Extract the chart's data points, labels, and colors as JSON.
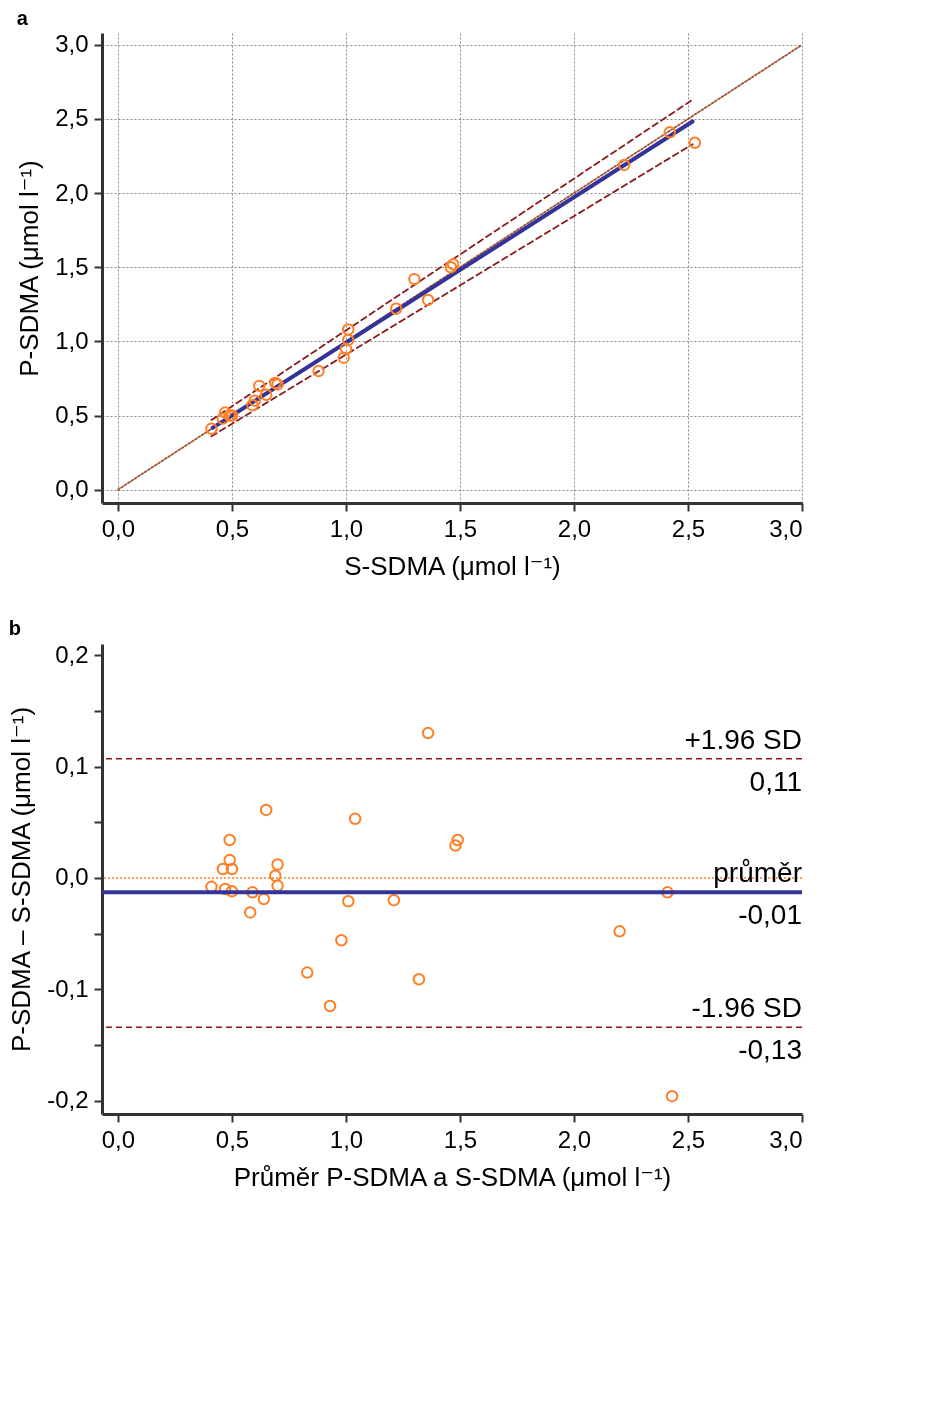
{
  "chart_data": [
    {
      "type": "scatter",
      "title": "a",
      "xlabel": "S-SDMA (μmol l⁻¹)",
      "ylabel": "P-SDMA (μmol l⁻¹)",
      "grid": true,
      "xlim": [
        -0.07,
        3.0
      ],
      "ylim": [
        -0.09,
        3.08
      ],
      "xticks": [
        {
          "value": 0,
          "label": "0,0"
        },
        {
          "value": 0.5,
          "label": "0,5"
        },
        {
          "value": 1,
          "label": "1,0"
        },
        {
          "value": 1.5,
          "label": "1,5"
        },
        {
          "value": 2,
          "label": "2,0"
        },
        {
          "value": 2.5,
          "label": "2,5"
        },
        {
          "value": 3,
          "label": "3,0"
        }
      ],
      "yticks": [
        {
          "value": 0,
          "label": "0,0"
        },
        {
          "value": 0.5,
          "label": "0,5"
        },
        {
          "value": 1,
          "label": "1,0"
        },
        {
          "value": 1.5,
          "label": "1,5"
        },
        {
          "value": 2,
          "label": "2,0"
        },
        {
          "value": 2.5,
          "label": "2,5"
        },
        {
          "value": 3,
          "label": "3,0"
        }
      ],
      "series": [
        {
          "type": "line",
          "line_style": "dotted",
          "color": "#a0522d",
          "x": [
            0,
            3
          ],
          "values": [
            0,
            3
          ]
        },
        {
          "type": "line",
          "line_style": "dashed",
          "color": "#8b1a1a",
          "x": [
            0.41,
            2.52
          ],
          "values": [
            0.47,
            2.63
          ]
        },
        {
          "type": "line",
          "line_style": "dashed",
          "color": "#8b1a1a",
          "x": [
            0.41,
            2.52
          ],
          "values": [
            0.36,
            2.33
          ]
        },
        {
          "type": "line",
          "line_style": "solid",
          "color": "#333399",
          "x": [
            0.415,
            2.52
          ],
          "values": [
            0.417,
            2.483
          ]
        },
        {
          "marker": "circle",
          "color": "#ff7f27",
          "x": [
            0.41,
            0.47,
            0.46,
            0.49,
            0.5,
            0.59,
            0.6,
            0.62,
            0.65,
            0.69,
            0.7,
            0.88,
            0.99,
            1.0,
            1.01,
            1.01,
            1.22,
            1.3,
            1.36,
            1.46,
            1.47,
            2.22,
            2.42,
            2.53
          ],
          "values": [
            0.41,
            0.52,
            0.48,
            0.5,
            0.5,
            0.57,
            0.6,
            0.7,
            0.64,
            0.72,
            0.71,
            0.8,
            0.89,
            0.95,
            1.01,
            1.08,
            1.22,
            1.42,
            1.28,
            1.5,
            1.52,
            2.19,
            2.41,
            2.34
          ]
        }
      ]
    },
    {
      "type": "scatter",
      "title": "b",
      "xlabel": "Průměr P-SDMA a S-SDMA (μmol l⁻¹)",
      "ylabel": "P-SDMA – S-SDMA (μmol l⁻¹)",
      "xlim": [
        -0.07,
        3.0
      ],
      "ylim": [
        -0.212,
        0.21
      ],
      "xticks": [
        {
          "value": 0,
          "label": "0,0"
        },
        {
          "value": 0.5,
          "label": "0,5"
        },
        {
          "value": 1,
          "label": "1,0"
        },
        {
          "value": 1.5,
          "label": "1,5"
        },
        {
          "value": 2,
          "label": "2,0"
        },
        {
          "value": 2.5,
          "label": "2,5"
        },
        {
          "value": 3,
          "label": "3,0"
        }
      ],
      "yticks": [
        {
          "value": -0.2,
          "label": "-0,2"
        },
        {
          "value": -0.15,
          "label": null
        },
        {
          "value": -0.1,
          "label": "-0,1"
        },
        {
          "value": -0.05,
          "label": null
        },
        {
          "value": 0,
          "label": "0,0"
        },
        {
          "value": 0.05,
          "label": null
        },
        {
          "value": 0.1,
          "label": "0,1"
        },
        {
          "value": 0.15,
          "label": null
        },
        {
          "value": 0.2,
          "label": "0,2"
        }
      ],
      "ref_lines": [
        {
          "axis": "y",
          "value": 0,
          "color": "#ff7f27",
          "line_style": "dotted"
        },
        {
          "axis": "y",
          "value": 0.107,
          "label": "+1.96 SD",
          "color": "#8b1a1a",
          "line_style": "dashed"
        },
        {
          "axis": "y",
          "value": -0.013,
          "label": "průměr",
          "color": "#333399",
          "line_style": "solid"
        },
        {
          "axis": "y",
          "value": -0.134,
          "label": "-1.96 SD",
          "color": "#8b1a1a",
          "line_style": "dashed"
        }
      ],
      "annotations": [
        {
          "text": "0,11",
          "y": 0.107
        },
        {
          "text": "-0,01",
          "y": -0.013
        },
        {
          "text": "-0,13",
          "y": -0.134
        }
      ],
      "series": [
        {
          "marker": "circle",
          "color": "#ff7f27",
          "x": [
            0.41,
            0.47,
            0.5,
            0.46,
            0.5,
            0.49,
            0.49,
            0.59,
            0.58,
            0.64,
            0.65,
            0.7,
            0.69,
            0.7,
            0.83,
            0.93,
            0.98,
            1.01,
            1.04,
            1.21,
            1.32,
            1.36,
            1.49,
            1.48,
            2.2,
            2.41,
            2.43
          ],
          "values": [
            -0.008,
            -0.01,
            -0.012,
            0.008,
            0.008,
            0.016,
            0.034,
            -0.013,
            -0.031,
            -0.019,
            0.061,
            0.012,
            0.002,
            -0.007,
            -0.085,
            -0.115,
            -0.056,
            -0.021,
            0.053,
            -0.02,
            -0.091,
            0.13,
            0.034,
            0.029,
            -0.048,
            -0.013,
            -0.196
          ]
        }
      ]
    }
  ]
}
